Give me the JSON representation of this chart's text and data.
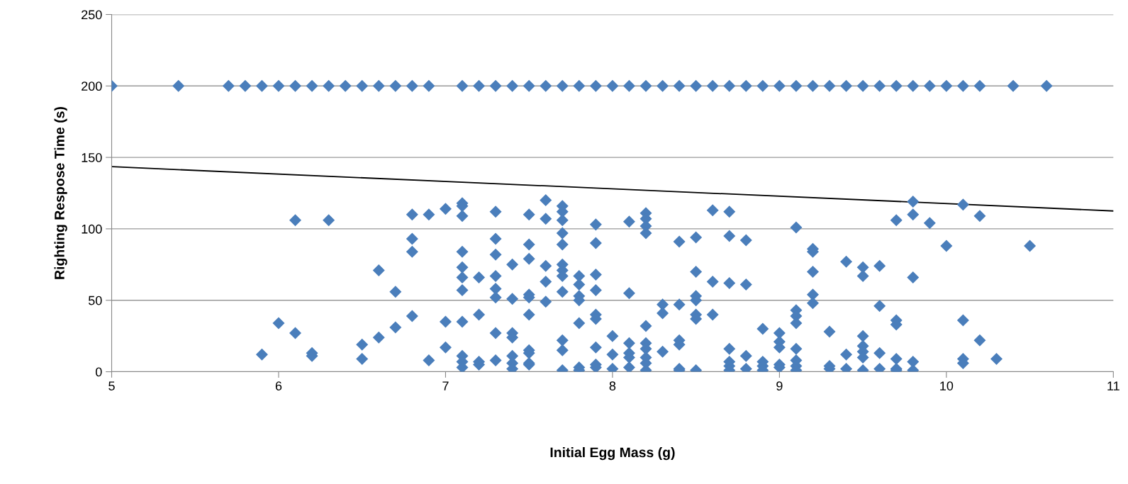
{
  "chart_data": {
    "type": "scatter",
    "xlabel": "Initial Egg Mass (g)",
    "ylabel": "Righting Respose Time (s)",
    "xlim": [
      5,
      11
    ],
    "xticks": [
      5,
      6,
      7,
      8,
      9,
      10,
      11
    ],
    "ylim": [
      0,
      250
    ],
    "yticks": [
      0,
      50,
      100,
      150,
      200,
      250
    ],
    "grid": "y",
    "legend": false,
    "marker": "diamond",
    "series": [
      {
        "color": "#4a7ebb",
        "x": [
          5.0,
          5.4,
          5.7,
          5.8,
          5.9,
          6.0,
          6.1,
          6.2,
          6.3,
          6.4,
          6.5,
          6.6,
          6.7,
          6.8,
          6.9,
          7.1,
          7.2,
          7.3,
          7.4,
          7.5,
          7.6,
          7.7,
          7.8,
          7.9,
          8.0,
          8.1,
          8.2,
          8.3,
          8.4,
          8.5,
          8.6,
          8.7,
          8.8,
          8.9,
          9.0,
          9.1,
          9.2,
          9.3,
          9.4,
          9.5,
          9.6,
          9.7,
          9.8,
          9.9,
          10.0,
          10.1,
          10.2,
          10.4,
          10.6,
          5.9,
          6.0,
          6.1,
          6.1,
          6.2,
          6.2,
          6.3,
          6.5,
          6.5,
          6.6,
          6.6,
          6.7,
          6.7,
          6.8,
          6.8,
          6.8,
          6.8,
          6.9,
          6.9,
          7.0,
          7.0,
          7.0,
          7.1,
          7.1,
          7.1,
          7.1,
          7.1,
          7.1,
          7.1,
          7.1,
          7.1,
          7.1,
          7.1,
          7.2,
          7.2,
          7.2,
          7.2,
          7.3,
          7.3,
          7.3,
          7.3,
          7.3,
          7.3,
          7.3,
          7.3,
          7.4,
          7.4,
          7.4,
          7.4,
          7.4,
          7.4,
          7.4,
          7.5,
          7.5,
          7.5,
          7.5,
          7.5,
          7.5,
          7.5,
          7.5,
          7.5,
          7.5,
          7.6,
          7.6,
          7.6,
          7.6,
          7.6,
          7.7,
          7.7,
          7.7,
          7.7,
          7.7,
          7.7,
          7.7,
          7.7,
          7.7,
          7.7,
          7.7,
          7.7,
          7.8,
          7.8,
          7.8,
          7.8,
          7.8,
          7.8,
          7.8,
          7.9,
          7.9,
          7.9,
          7.9,
          7.9,
          7.9,
          7.9,
          7.9,
          7.9,
          8.0,
          8.0,
          8.0,
          8.1,
          8.1,
          8.1,
          8.1,
          8.1,
          8.1,
          8.2,
          8.2,
          8.2,
          8.2,
          8.2,
          8.2,
          8.2,
          8.2,
          8.2,
          8.2,
          8.3,
          8.3,
          8.3,
          8.4,
          8.4,
          8.4,
          8.4,
          8.4,
          8.4,
          8.5,
          8.5,
          8.5,
          8.5,
          8.5,
          8.5,
          8.5,
          8.6,
          8.6,
          8.6,
          8.7,
          8.7,
          8.7,
          8.7,
          8.7,
          8.7,
          8.7,
          8.8,
          8.8,
          8.8,
          8.8,
          8.9,
          8.9,
          8.9,
          8.9,
          9.0,
          9.0,
          9.0,
          9.0,
          9.0,
          9.1,
          9.1,
          9.1,
          9.1,
          9.1,
          9.1,
          9.1,
          9.1,
          9.2,
          9.2,
          9.2,
          9.2,
          9.2,
          9.3,
          9.3,
          9.3,
          9.4,
          9.4,
          9.4,
          9.5,
          9.5,
          9.5,
          9.5,
          9.5,
          9.5,
          9.5,
          9.6,
          9.6,
          9.6,
          9.6,
          9.7,
          9.7,
          9.7,
          9.7,
          9.7,
          9.7,
          9.8,
          9.8,
          9.8,
          9.8,
          9.8,
          9.9,
          10.0,
          10.1,
          10.1,
          10.1,
          10.1,
          10.2,
          10.2,
          10.3,
          10.5
        ],
        "values": [
          200,
          200,
          200,
          200,
          200,
          200,
          200,
          200,
          200,
          200,
          200,
          200,
          200,
          200,
          200,
          200,
          200,
          200,
          200,
          200,
          200,
          200,
          200,
          200,
          200,
          200,
          200,
          200,
          200,
          200,
          200,
          200,
          200,
          200,
          200,
          200,
          200,
          200,
          200,
          200,
          200,
          200,
          200,
          200,
          200,
          200,
          200,
          200,
          200,
          12,
          34,
          106,
          27,
          13,
          11,
          106,
          19,
          9,
          71,
          24,
          56,
          31,
          110,
          93,
          84,
          39,
          110,
          8,
          114,
          35,
          17,
          118,
          116,
          109,
          84,
          73,
          66,
          57,
          35,
          11,
          7,
          3,
          66,
          40,
          7,
          5,
          112,
          93,
          82,
          67,
          58,
          52,
          27,
          8,
          75,
          51,
          27,
          24,
          11,
          6,
          2,
          110,
          89,
          79,
          54,
          52,
          40,
          15,
          13,
          6,
          5,
          120,
          107,
          74,
          63,
          49,
          116,
          112,
          106,
          97,
          89,
          75,
          71,
          67,
          56,
          22,
          15,
          1,
          67,
          61,
          53,
          50,
          34,
          3,
          1,
          103,
          90,
          68,
          57,
          40,
          37,
          17,
          5,
          3,
          25,
          12,
          2,
          105,
          55,
          20,
          13,
          10,
          3,
          111,
          107,
          102,
          97,
          32,
          20,
          16,
          10,
          6,
          1,
          47,
          41,
          14,
          91,
          47,
          22,
          19,
          2,
          1,
          94,
          70,
          53,
          50,
          40,
          37,
          1,
          113,
          63,
          40,
          112,
          95,
          62,
          16,
          7,
          4,
          1,
          92,
          61,
          11,
          2,
          30,
          7,
          4,
          1,
          27,
          21,
          17,
          5,
          3,
          101,
          43,
          39,
          34,
          16,
          8,
          4,
          1,
          86,
          84,
          70,
          54,
          48,
          28,
          4,
          2,
          77,
          12,
          2,
          73,
          67,
          25,
          18,
          14,
          10,
          1,
          74,
          46,
          13,
          2,
          106,
          36,
          33,
          9,
          2,
          1,
          119,
          110,
          66,
          7,
          1,
          104,
          88,
          117,
          36,
          9,
          6,
          109,
          22,
          9,
          88
        ]
      },
      {
        "type": "line",
        "color": "#000000",
        "marker": "none",
        "line_style": "solid",
        "x": [
          5,
          11
        ],
        "values": [
          143.5,
          112.5
        ]
      }
    ]
  }
}
